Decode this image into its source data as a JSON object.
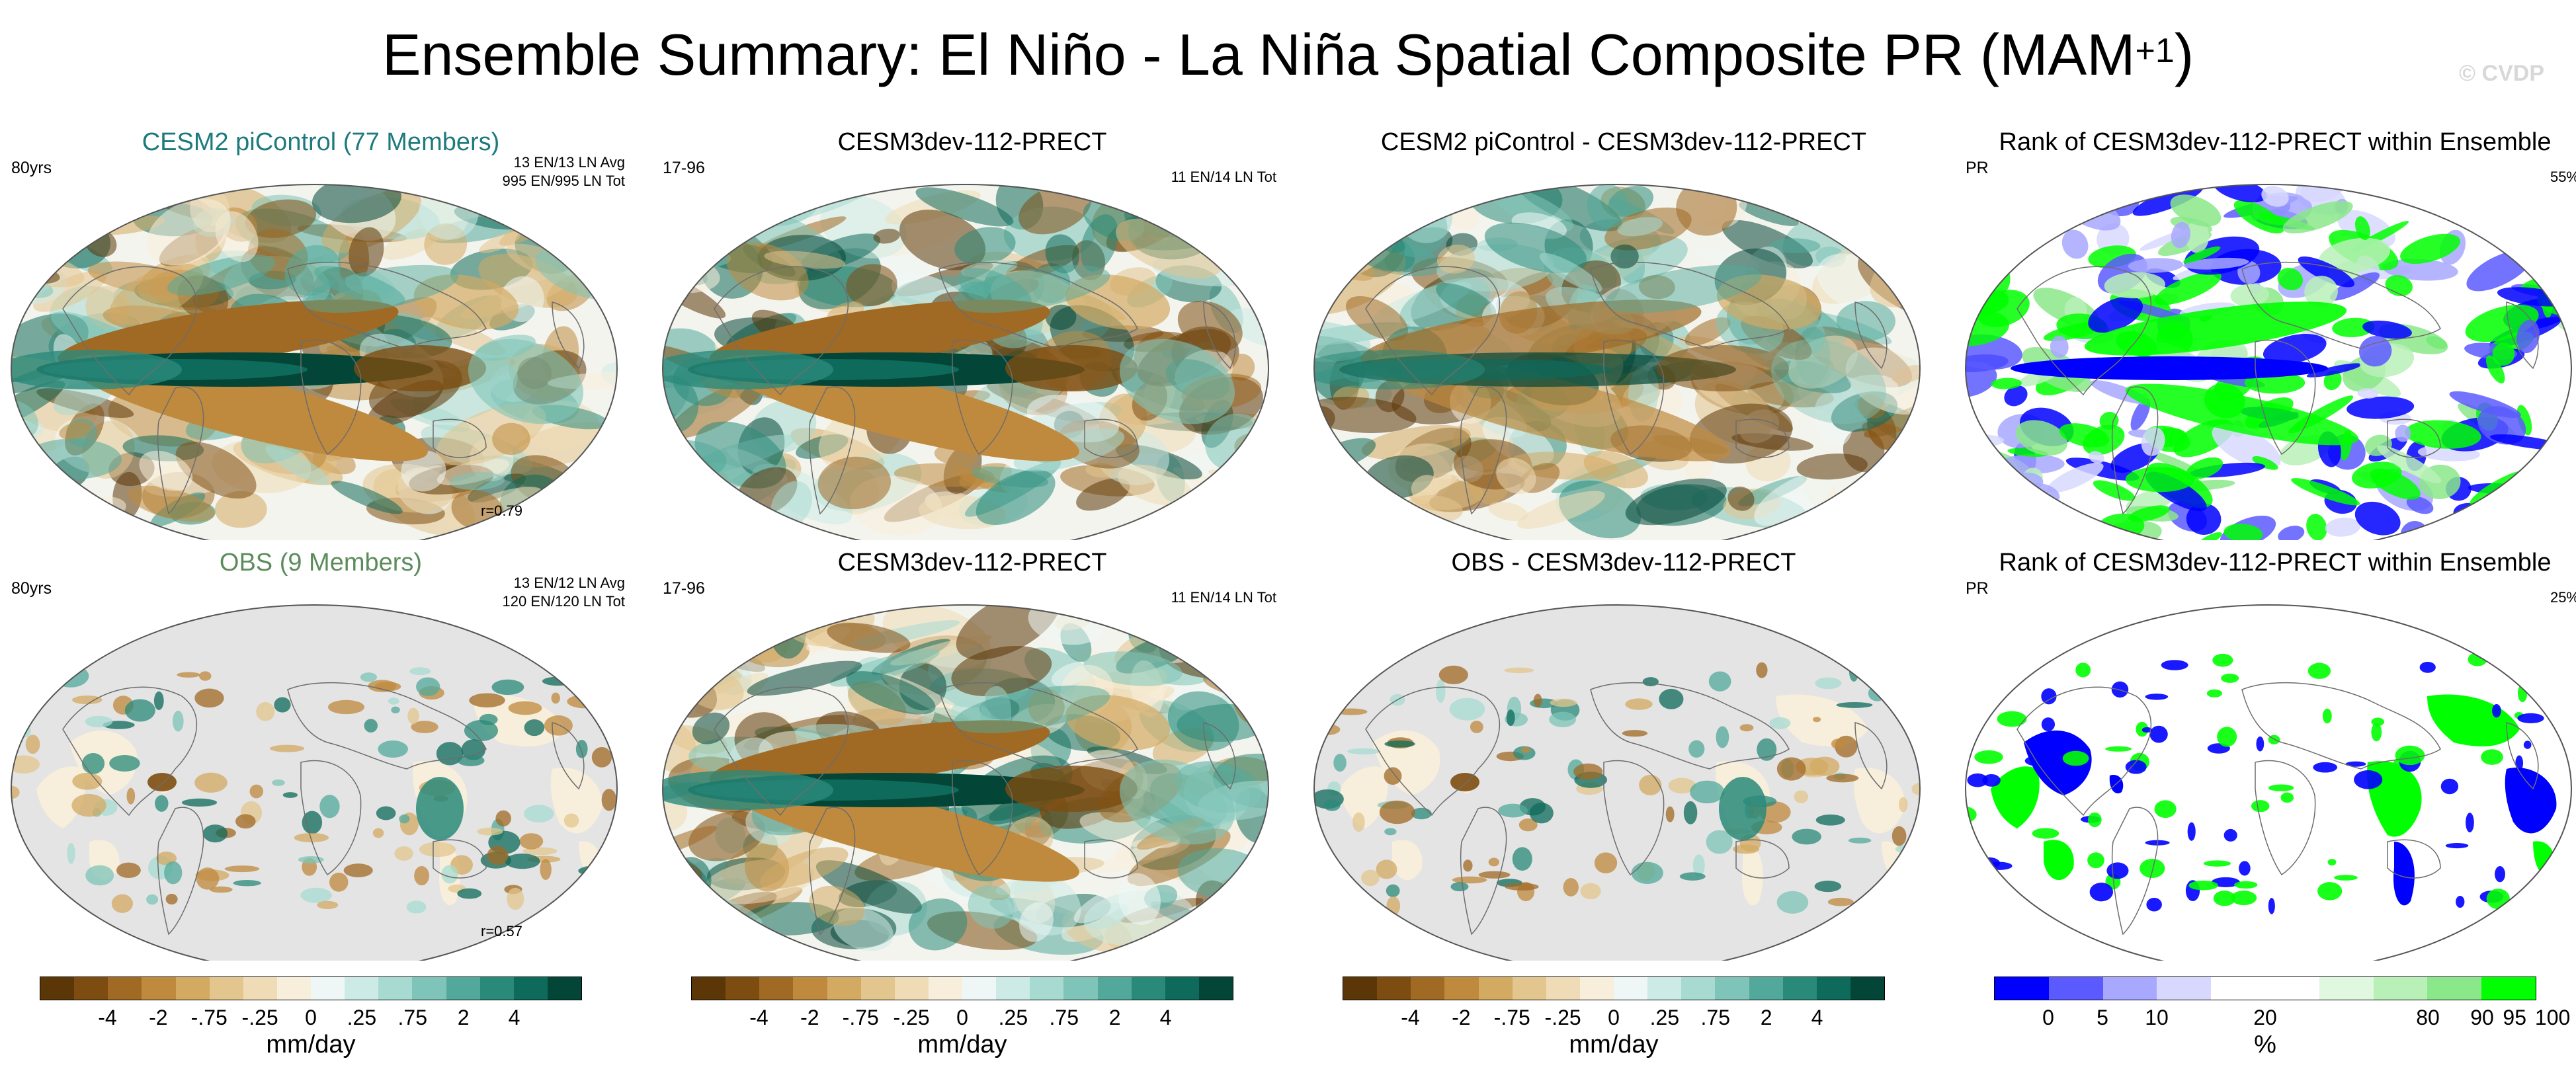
{
  "title": "Ensemble Summary: El Niño - La Niña Spatial Composite PR (MAM",
  "title_sup": "+1",
  "title_close": ")",
  "watermark": "© CVDP",
  "panels": [
    {
      "title": "CESM2 piControl (77 Members)",
      "style": "teal",
      "left_label": "80yrs",
      "right_label": "13 EN/13 LN Avg\n995 EN/995 LN Tot",
      "corr": "r=0.79",
      "map": "tropics",
      "landonly": false
    },
    {
      "title": "CESM3dev-112-PRECT",
      "style": "",
      "left_label": "17-96",
      "right_label": "11 EN/14 LN Tot",
      "corr": "",
      "map": "tropics",
      "landonly": false
    },
    {
      "title": "CESM2 piControl - CESM3dev-112-PRECT",
      "style": "",
      "left_label": "",
      "right_label": "",
      "corr": "",
      "map": "diff",
      "landonly": false
    },
    {
      "title": "Rank of CESM3dev-112-PRECT within Ensemble",
      "style": "",
      "left_label": "PR",
      "right_label": "55%",
      "corr": "",
      "map": "rank",
      "landonly": false
    },
    {
      "title": "OBS (9 Members)",
      "style": "green",
      "left_label": "80yrs",
      "right_label": "13 EN/12 LN Avg\n120 EN/120 LN Tot",
      "corr": "r=0.57",
      "map": "obs",
      "landonly": true
    },
    {
      "title": "CESM3dev-112-PRECT",
      "style": "",
      "left_label": "17-96",
      "right_label": "11 EN/14 LN Tot",
      "corr": "",
      "map": "tropics",
      "landonly": false
    },
    {
      "title": "OBS - CESM3dev-112-PRECT",
      "style": "",
      "left_label": "",
      "right_label": "",
      "corr": "",
      "map": "obs",
      "landonly": true
    },
    {
      "title": "Rank of CESM3dev-112-PRECT within Ensemble",
      "style": "",
      "left_label": "PR",
      "right_label": "25%",
      "corr": "",
      "map": "rankland",
      "landonly": true
    }
  ],
  "colorbars": [
    {
      "ticks": [
        "-4",
        "-2",
        "-.75",
        "-.25",
        "0",
        ".25",
        ".75",
        "2",
        "4"
      ],
      "label": "mm/day",
      "type": "brown"
    },
    {
      "ticks": [
        "-4",
        "-2",
        "-.75",
        "-.25",
        "0",
        ".25",
        ".75",
        "2",
        "4"
      ],
      "label": "mm/day",
      "type": "brown"
    },
    {
      "ticks": [
        "-4",
        "-2",
        "-.75",
        "-.25",
        "0",
        ".25",
        ".75",
        "2",
        "4"
      ],
      "label": "mm/day",
      "type": "brown"
    },
    {
      "ticks": [
        "0",
        "5",
        "10",
        "20",
        "80",
        "90",
        "95",
        "100"
      ],
      "label": "%",
      "type": "rank"
    }
  ],
  "colors": {
    "brown_scale": [
      "#5b3708",
      "#7d4c10",
      "#a06a24",
      "#bf8a3e",
      "#d3aa62",
      "#e3c58e",
      "#efdcb6",
      "#f7eedb",
      "#eef7f5",
      "#cdebe6",
      "#a7dbd2",
      "#7ec4b8",
      "#52a99b",
      "#2a8a7a",
      "#0e6a5a",
      "#034637"
    ],
    "rank_scale": [
      "#0000ff",
      "#5a5aff",
      "#a8a8ff",
      "#d8d8ff",
      "#ffffff",
      "#ffffff",
      "#e0f8e0",
      "#b8f0b8",
      "#8ae88a",
      "#00ff00"
    ],
    "ocean_gray": "#e4e4e4"
  }
}
